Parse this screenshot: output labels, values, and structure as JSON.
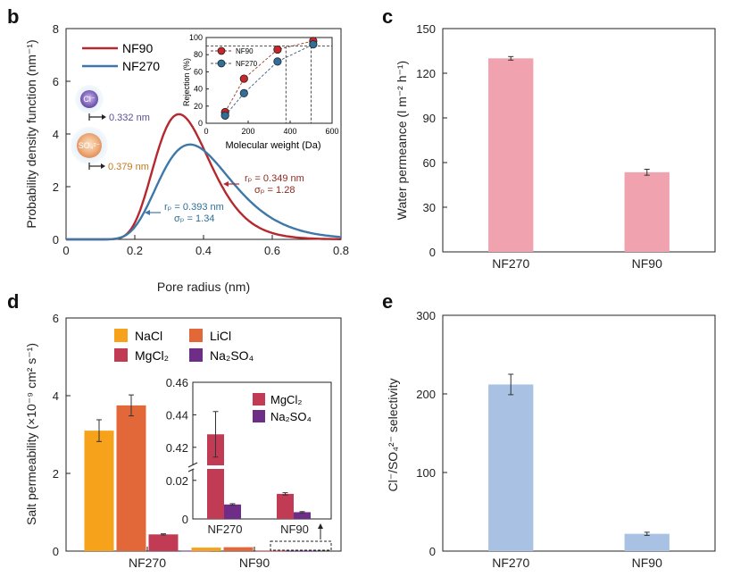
{
  "panels": {
    "b": "b",
    "c": "c",
    "d": "d",
    "e": "e"
  },
  "chart_data": [
    {
      "id": "b",
      "type": "line",
      "xlabel": "Pore radius (nm)",
      "ylabel": "Probability density function (nm⁻¹)",
      "xlim": [
        0,
        0.8
      ],
      "ylim": [
        0,
        8
      ],
      "xticks": [
        "0",
        "0.2",
        "0.4",
        "0.6",
        "0.8"
      ],
      "yticks": [
        "0",
        "2",
        "4",
        "6",
        "8"
      ],
      "series": [
        {
          "name": "NF90",
          "color": "#b5282e",
          "rp": 0.349,
          "sigma": 1.28,
          "peak": 4.75
        },
        {
          "name": "NF270",
          "color": "#3d78a8",
          "rp": 0.393,
          "sigma": 1.34,
          "peak": 3.6
        }
      ],
      "annotations": {
        "nf90_rp": "rₚ = 0.349 nm",
        "nf90_sigma": "σₚ = 1.28",
        "nf270_rp": "rₚ = 0.393 nm",
        "nf270_sigma": "σₚ = 1.34",
        "cl_ion": "Cl⁻",
        "cl_size": "0.332 nm",
        "so4_ion": "SO₄²⁻",
        "so4_size": "0.379 nm"
      },
      "inset": {
        "type": "scatter",
        "xlabel": "Molecular weight (Da)",
        "ylabel": "Rejection (%)",
        "xlim": [
          0,
          600
        ],
        "ylim": [
          0,
          100
        ],
        "xticks": [
          "0",
          "200",
          "400",
          "600"
        ],
        "yticks": [
          "0",
          "20",
          "40",
          "60",
          "80",
          "100"
        ],
        "series": [
          {
            "name": "NF90",
            "color": "#c8252c",
            "x": [
              90,
              180,
              340,
              510
            ],
            "y": [
              13,
              52,
              86,
              96
            ]
          },
          {
            "name": "NF270",
            "color": "#2f6f99",
            "x": [
              90,
              180,
              340,
              510
            ],
            "y": [
              9,
              35,
              72,
              92
            ]
          }
        ],
        "reference_y": 90,
        "cutoffs": [
          380,
          500
        ]
      }
    },
    {
      "id": "c",
      "type": "bar",
      "ylabel": "Water permeance (l m⁻² h⁻¹)",
      "categories": [
        "NF270",
        "NF90"
      ],
      "values": [
        130,
        53.5
      ],
      "errors": [
        1.2,
        2
      ],
      "ylim": [
        0,
        150
      ],
      "yticks": [
        "0",
        "30",
        "60",
        "90",
        "120",
        "150"
      ],
      "color": "#f0a3ae"
    },
    {
      "id": "d",
      "type": "bar",
      "ylabel": "Salt permeability (×10⁻⁹ cm² s⁻¹)",
      "categories": [
        "NF270",
        "NF90"
      ],
      "ylim": [
        0,
        6
      ],
      "yticks": [
        "0",
        "2",
        "4",
        "6"
      ],
      "series": [
        {
          "name": "NaCl",
          "color": "#f7a21b",
          "values": [
            3.1,
            0.09
          ],
          "errors": [
            0.28,
            0.01
          ]
        },
        {
          "name": "LiCl",
          "color": "#e2683a",
          "values": [
            3.75,
            0.1
          ],
          "errors": [
            0.27,
            0.01
          ]
        },
        {
          "name": "MgCl₂",
          "color": "#c23b55",
          "values": [
            0.43,
            0.013
          ],
          "errors": [
            0.015,
            0.001
          ]
        },
        {
          "name": "Na₂SO₄",
          "color": "#6e2d86",
          "values": [
            0.0075,
            0.0035
          ],
          "errors": [
            0.0005,
            0.0003
          ]
        }
      ],
      "inset": {
        "categories": [
          "NF270",
          "NF90"
        ],
        "yticks_upper": [
          "0.42",
          "0.44",
          "0.46"
        ],
        "yticks_lower": [
          "0",
          "0.02"
        ],
        "series": [
          {
            "name": "MgCl₂",
            "color": "#c23b55",
            "values": [
              0.428,
              0.013
            ],
            "errors": [
              0.014,
              0.0006
            ]
          },
          {
            "name": "Na₂SO₄",
            "color": "#6e2d86",
            "values": [
              0.0075,
              0.0035
            ],
            "errors": [
              0.0004,
              0.0003
            ]
          }
        ]
      }
    },
    {
      "id": "e",
      "type": "bar",
      "ylabel": "Cl⁻/SO₄²⁻ selectivity",
      "categories": [
        "NF270",
        "NF90"
      ],
      "values": [
        212,
        22
      ],
      "errors": [
        13,
        2
      ],
      "ylim": [
        0,
        300
      ],
      "yticks": [
        "0",
        "100",
        "200",
        "300"
      ],
      "color": "#a9c2e3"
    }
  ]
}
